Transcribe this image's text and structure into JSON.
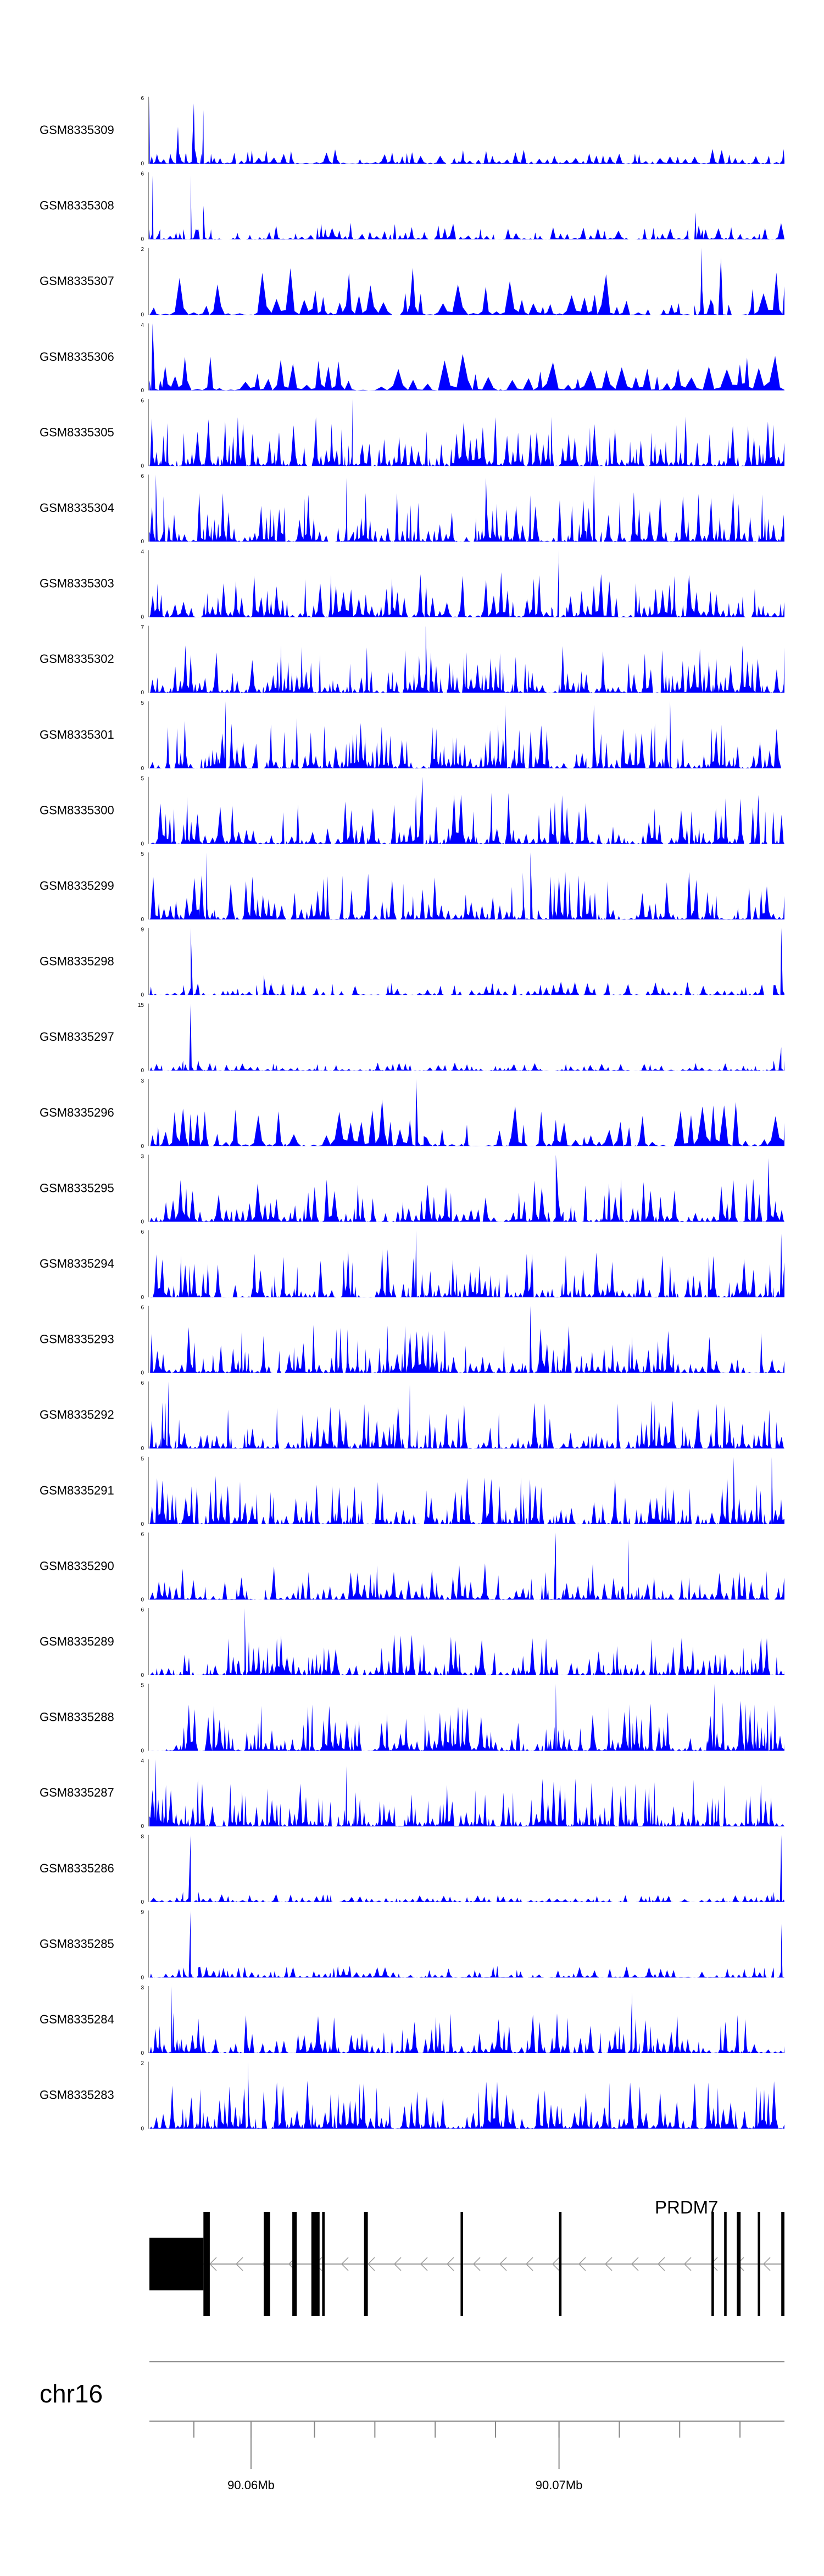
{
  "chart_data": {
    "type": "area",
    "fill_color": "#0000ff",
    "series": [
      {
        "name": "GSM8335309",
        "ymax": "6",
        "ymin": "0",
        "peaks": [
          [
            0.0,
            1.0
          ],
          [
            0.045,
            0.55
          ],
          [
            0.07,
            0.9
          ],
          [
            0.085,
            0.8
          ]
        ],
        "noise": 0.22,
        "n": 88,
        "seed": 1
      },
      {
        "name": "GSM8335308",
        "ymax": "6",
        "ymin": "0",
        "peaks": [
          [
            0.005,
            0.95
          ],
          [
            0.065,
            0.95
          ],
          [
            0.085,
            0.5
          ],
          [
            0.86,
            0.4
          ]
        ],
        "noise": 0.25,
        "n": 95,
        "seed": 2
      },
      {
        "name": "GSM8335307",
        "ymax": "2",
        "ymin": "0",
        "peaks": [
          [
            0.87,
            1.0
          ],
          [
            0.9,
            0.85
          ]
        ],
        "noise": 0.7,
        "n": 60,
        "seed": 3
      },
      {
        "name": "GSM8335306",
        "ymax": "4",
        "ymin": "0",
        "peaks": [
          [
            0.005,
            1.0
          ]
        ],
        "noise": 0.55,
        "n": 50,
        "seed": 4
      },
      {
        "name": "GSM8335305",
        "ymax": "6",
        "ymin": "0",
        "peaks": [
          [
            0.32,
            1.0
          ]
        ],
        "noise": 0.75,
        "n": 130,
        "seed": 5
      },
      {
        "name": "GSM8335304",
        "ymax": "6",
        "ymin": "0",
        "peaks": [
          [
            0.01,
            1.0
          ],
          [
            0.31,
            0.95
          ],
          [
            0.53,
            0.95
          ],
          [
            0.7,
            1.0
          ]
        ],
        "noise": 0.75,
        "n": 130,
        "seed": 6
      },
      {
        "name": "GSM8335303",
        "ymax": "4",
        "ymin": "0",
        "peaks": [
          [
            0.645,
            1.0
          ]
        ],
        "noise": 0.7,
        "n": 110,
        "seed": 7
      },
      {
        "name": "GSM8335302",
        "ymax": "7",
        "ymin": "0",
        "peaks": [
          [
            0.435,
            1.0
          ]
        ],
        "noise": 0.72,
        "n": 130,
        "seed": 8
      },
      {
        "name": "GSM8335301",
        "ymax": "5",
        "ymin": "0",
        "peaks": [
          [
            0.12,
            1.0
          ],
          [
            0.56,
            0.95
          ],
          [
            0.7,
            0.95
          ],
          [
            0.82,
            1.0
          ]
        ],
        "noise": 0.75,
        "n": 130,
        "seed": 9
      },
      {
        "name": "GSM8335300",
        "ymax": "5",
        "ymin": "0",
        "peaks": [
          [
            0.43,
            1.0
          ]
        ],
        "noise": 0.78,
        "n": 120,
        "seed": 10
      },
      {
        "name": "GSM8335299",
        "ymax": "5",
        "ymin": "0",
        "peaks": [
          [
            0.09,
            1.0
          ],
          [
            0.6,
            1.0
          ]
        ],
        "noise": 0.72,
        "n": 120,
        "seed": 11
      },
      {
        "name": "GSM8335298",
        "ymax": "9",
        "ymin": "0",
        "peaks": [
          [
            0.065,
            1.0
          ],
          [
            0.18,
            0.3
          ],
          [
            0.995,
            1.0
          ]
        ],
        "noise": 0.2,
        "n": 110,
        "seed": 12
      },
      {
        "name": "GSM8335297",
        "ymax": "15",
        "ymin": "0",
        "peaks": [
          [
            0.065,
            1.0
          ],
          [
            0.995,
            0.35
          ]
        ],
        "noise": 0.12,
        "n": 110,
        "seed": 13
      },
      {
        "name": "GSM8335296",
        "ymax": "3",
        "ymin": "0",
        "peaks": [
          [
            0.42,
            1.0
          ]
        ],
        "noise": 0.7,
        "n": 70,
        "seed": 14
      },
      {
        "name": "GSM8335295",
        "ymax": "3",
        "ymin": "0",
        "peaks": [
          [
            0.64,
            1.0
          ],
          [
            0.975,
            0.95
          ]
        ],
        "noise": 0.65,
        "n": 110,
        "seed": 15
      },
      {
        "name": "GSM8335294",
        "ymax": "6",
        "ymin": "0",
        "peaks": [
          [
            0.42,
            1.0
          ],
          [
            0.995,
            0.95
          ]
        ],
        "noise": 0.72,
        "n": 130,
        "seed": 16
      },
      {
        "name": "GSM8335293",
        "ymax": "6",
        "ymin": "0",
        "peaks": [
          [
            0.6,
            1.0
          ]
        ],
        "noise": 0.72,
        "n": 130,
        "seed": 17
      },
      {
        "name": "GSM8335292",
        "ymax": "6",
        "ymin": "0",
        "peaks": [
          [
            0.03,
            1.0
          ],
          [
            0.41,
            0.95
          ]
        ],
        "noise": 0.72,
        "n": 130,
        "seed": 18
      },
      {
        "name": "GSM8335291",
        "ymax": "5",
        "ymin": "0",
        "peaks": [
          [
            0.92,
            1.0
          ],
          [
            0.98,
            1.0
          ]
        ],
        "noise": 0.72,
        "n": 130,
        "seed": 19
      },
      {
        "name": "GSM8335290",
        "ymax": "6",
        "ymin": "0",
        "peaks": [
          [
            0.64,
            1.0
          ],
          [
            0.755,
            0.9
          ]
        ],
        "noise": 0.55,
        "n": 120,
        "seed": 20
      },
      {
        "name": "GSM8335289",
        "ymax": "6",
        "ymin": "0",
        "peaks": [
          [
            0.15,
            1.0
          ]
        ],
        "noise": 0.62,
        "n": 130,
        "seed": 21
      },
      {
        "name": "GSM8335288",
        "ymax": "5",
        "ymin": "0",
        "peaks": [
          [
            0.64,
            1.0
          ],
          [
            0.89,
            1.0
          ]
        ],
        "noise": 0.75,
        "n": 130,
        "seed": 22
      },
      {
        "name": "GSM8335287",
        "ymax": "4",
        "ymin": "0",
        "peaks": [
          [
            0.01,
            1.0
          ],
          [
            0.31,
            0.9
          ]
        ],
        "noise": 0.72,
        "n": 140,
        "seed": 23
      },
      {
        "name": "GSM8335286",
        "ymax": "8",
        "ymin": "0",
        "peaks": [
          [
            0.065,
            1.0
          ],
          [
            0.995,
            1.0
          ]
        ],
        "noise": 0.12,
        "n": 110,
        "seed": 24
      },
      {
        "name": "GSM8335285",
        "ymax": "9",
        "ymin": "0",
        "peaks": [
          [
            0.065,
            1.0
          ],
          [
            0.995,
            0.8
          ]
        ],
        "noise": 0.18,
        "n": 110,
        "seed": 25
      },
      {
        "name": "GSM8335284",
        "ymax": "3",
        "ymin": "0",
        "peaks": [
          [
            0.035,
            1.0
          ],
          [
            0.76,
            0.9
          ]
        ],
        "noise": 0.6,
        "n": 120,
        "seed": 26
      },
      {
        "name": "GSM8335283",
        "ymax": "2",
        "ymin": "0",
        "peaks": [
          [
            0.155,
            1.0
          ]
        ],
        "noise": 0.72,
        "n": 120,
        "seed": 27
      }
    ],
    "gene_track": {
      "gene_name": "PRDM7",
      "strand": "-",
      "exons_relative": [
        [
          0.0,
          0.085,
          "thick"
        ],
        [
          0.085,
          0.095,
          "tall"
        ],
        [
          0.18,
          0.19,
          "tall"
        ],
        [
          0.225,
          0.232,
          "tall"
        ],
        [
          0.255,
          0.268,
          "tall"
        ],
        [
          0.272,
          0.276,
          "tall"
        ],
        [
          0.338,
          0.344,
          "tall"
        ],
        [
          0.49,
          0.494,
          "tall"
        ],
        [
          0.645,
          0.649,
          "tall"
        ],
        [
          0.885,
          0.889,
          "tall"
        ],
        [
          0.905,
          0.909,
          "tall"
        ],
        [
          0.925,
          0.931,
          "tall"
        ],
        [
          0.958,
          0.962,
          "tall"
        ],
        [
          0.995,
          1.0,
          "tall"
        ]
      ]
    },
    "axis": {
      "chromosome": "chr16",
      "tick_labels": [
        "90.06Mb",
        "90.07Mb"
      ],
      "labeled_ticks_relative": [
        0.16,
        0.645
      ],
      "minor_ticks_relative": [
        0.07,
        0.16,
        0.26,
        0.355,
        0.45,
        0.545,
        0.645,
        0.74,
        0.835,
        0.93
      ]
    }
  }
}
